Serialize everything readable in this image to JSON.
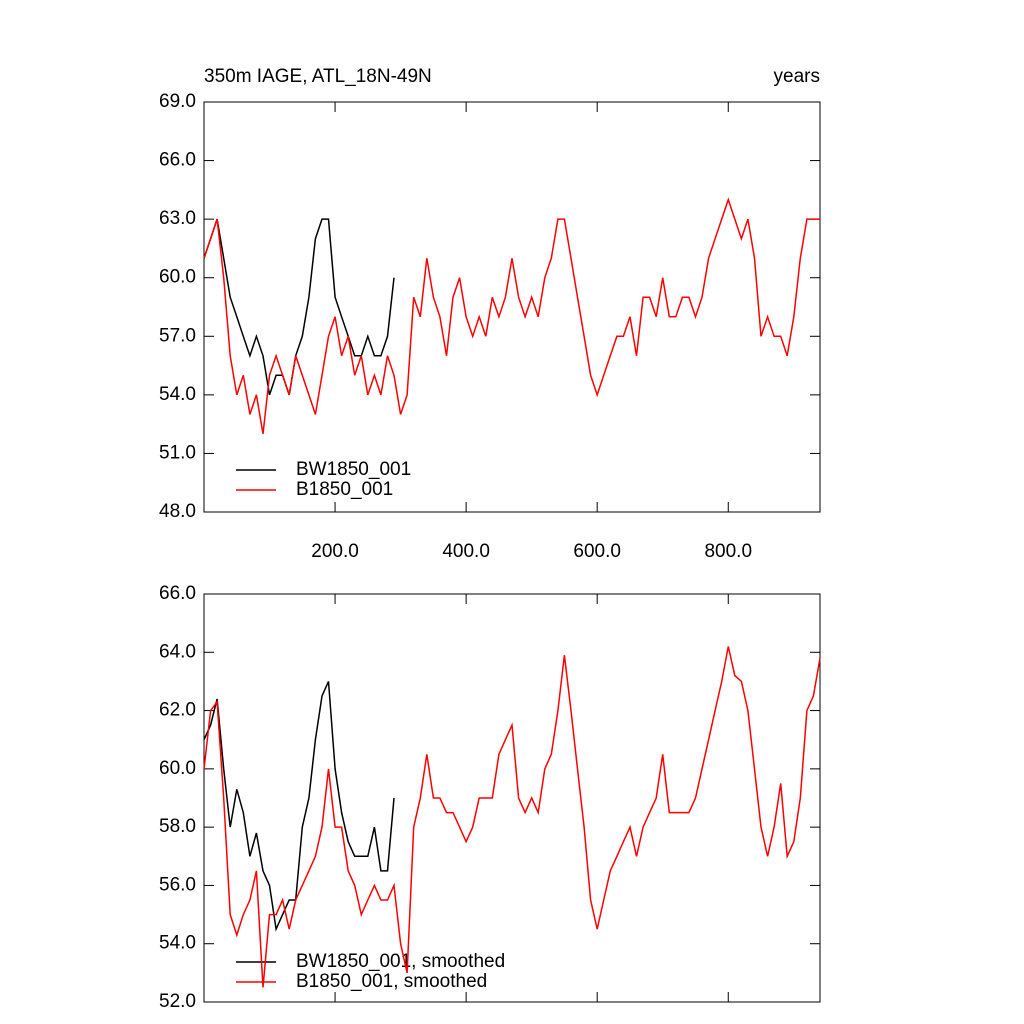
{
  "chart_data": [
    {
      "type": "line",
      "title": "350m IAGE, ATL_18N-49N",
      "right_title": "years",
      "xlim": [
        0,
        940
      ],
      "xticks": [
        {
          "value": 200,
          "label": "200.0"
        },
        {
          "value": 400,
          "label": "400.0"
        },
        {
          "value": 600,
          "label": "600.0"
        },
        {
          "value": 800,
          "label": "800.0"
        }
      ],
      "ylim": [
        48,
        69
      ],
      "yticks": [
        {
          "value": 48,
          "label": "48.0"
        },
        {
          "value": 51,
          "label": "51.0"
        },
        {
          "value": 54,
          "label": "54.0"
        },
        {
          "value": 57,
          "label": "57.0"
        },
        {
          "value": 60,
          "label": "60.0"
        },
        {
          "value": 63,
          "label": "63.0"
        },
        {
          "value": 66,
          "label": "66.0"
        },
        {
          "value": 69,
          "label": "69.0"
        }
      ],
      "legend": "lower left",
      "series": [
        {
          "name": "BW1850_001",
          "color": "#000000",
          "x": [
            0,
            10,
            20,
            30,
            40,
            50,
            60,
            70,
            80,
            90,
            100,
            110,
            120,
            130,
            140,
            150,
            160,
            170,
            180,
            190,
            200,
            210,
            220,
            230,
            240,
            250,
            260,
            270,
            280,
            290
          ],
          "values": [
            61,
            62,
            63,
            61,
            59,
            58,
            57,
            56,
            57,
            56,
            54,
            55,
            55,
            54,
            56,
            57,
            59,
            62,
            63,
            63,
            59,
            58,
            57,
            56,
            56,
            57,
            56,
            56,
            57,
            60
          ]
        },
        {
          "name": "B1850_001",
          "color": "#ff0000",
          "x": [
            0,
            10,
            20,
            30,
            40,
            50,
            60,
            70,
            80,
            90,
            100,
            110,
            120,
            130,
            140,
            150,
            160,
            170,
            180,
            190,
            200,
            210,
            220,
            230,
            240,
            250,
            260,
            270,
            280,
            290,
            300,
            310,
            320,
            330,
            340,
            350,
            360,
            370,
            380,
            390,
            400,
            410,
            420,
            430,
            440,
            450,
            460,
            470,
            480,
            490,
            500,
            510,
            520,
            530,
            540,
            550,
            560,
            570,
            580,
            590,
            600,
            610,
            620,
            630,
            640,
            650,
            660,
            670,
            680,
            690,
            700,
            710,
            720,
            730,
            740,
            750,
            760,
            770,
            780,
            790,
            800,
            810,
            820,
            830,
            840,
            850,
            860,
            870,
            880,
            890,
            900,
            910,
            920,
            930,
            940
          ],
          "values": [
            61,
            62,
            63,
            60,
            56,
            54,
            55,
            53,
            54,
            52,
            55,
            56,
            55,
            54,
            56,
            55,
            54,
            53,
            55,
            57,
            58,
            56,
            57,
            55,
            56,
            54,
            55,
            54,
            56,
            55,
            53,
            54,
            59,
            58,
            61,
            59,
            58,
            56,
            59,
            60,
            58,
            57,
            58,
            57,
            59,
            58,
            59,
            61,
            59,
            58,
            59,
            58,
            60,
            61,
            63,
            63,
            61,
            59,
            57,
            55,
            54,
            55,
            56,
            57,
            57,
            58,
            56,
            59,
            59,
            58,
            60,
            58,
            58,
            59,
            59,
            58,
            59,
            61,
            62,
            63,
            64,
            63,
            62,
            63,
            61,
            57,
            58,
            57,
            57,
            56,
            58,
            61,
            63,
            63,
            63
          ]
        }
      ]
    },
    {
      "type": "line",
      "xlim": [
        0,
        940
      ],
      "xticks": [
        200,
        400,
        600,
        800
      ],
      "ylim": [
        52,
        66
      ],
      "yticks": [
        {
          "value": 52,
          "label": "52.0"
        },
        {
          "value": 54,
          "label": "54.0"
        },
        {
          "value": 56,
          "label": "56.0"
        },
        {
          "value": 58,
          "label": "58.0"
        },
        {
          "value": 60,
          "label": "60.0"
        },
        {
          "value": 62,
          "label": "62.0"
        },
        {
          "value": 64,
          "label": "64.0"
        },
        {
          "value": 66,
          "label": "66.0"
        }
      ],
      "legend": "lower left",
      "series": [
        {
          "name": "BW1850_001, smoothed",
          "color": "#000000",
          "x": [
            0,
            10,
            20,
            30,
            40,
            50,
            60,
            70,
            80,
            90,
            100,
            110,
            120,
            130,
            140,
            150,
            160,
            170,
            180,
            190,
            200,
            210,
            220,
            230,
            240,
            250,
            260,
            270,
            280,
            290
          ],
          "values": [
            61,
            61.5,
            62.4,
            60,
            58,
            59.3,
            58.5,
            57,
            57.8,
            56.5,
            56,
            54.5,
            55,
            55.5,
            55.5,
            58,
            59,
            61,
            62.5,
            63,
            60,
            58.5,
            57.5,
            57,
            57,
            57,
            58,
            56.5,
            56.5,
            59
          ]
        },
        {
          "name": "B1850_001, smoothed",
          "color": "#ff0000",
          "x": [
            0,
            10,
            20,
            30,
            40,
            50,
            60,
            70,
            80,
            90,
            100,
            110,
            120,
            130,
            140,
            150,
            160,
            170,
            180,
            190,
            200,
            210,
            220,
            230,
            240,
            250,
            260,
            270,
            280,
            290,
            300,
            310,
            320,
            330,
            340,
            350,
            360,
            370,
            380,
            390,
            400,
            410,
            420,
            430,
            440,
            450,
            460,
            470,
            480,
            490,
            500,
            510,
            520,
            530,
            540,
            550,
            560,
            570,
            580,
            590,
            600,
            610,
            620,
            630,
            640,
            650,
            660,
            670,
            680,
            690,
            700,
            710,
            720,
            730,
            740,
            750,
            760,
            770,
            780,
            790,
            800,
            810,
            820,
            830,
            840,
            850,
            860,
            870,
            880,
            890,
            900,
            910,
            920,
            930,
            940
          ],
          "values": [
            60,
            62,
            62.3,
            59,
            55,
            54.3,
            55,
            55.5,
            56.5,
            52.5,
            55,
            55,
            55.5,
            54.5,
            55.5,
            56,
            56.5,
            57,
            58,
            60,
            58,
            58,
            56.5,
            56,
            55,
            55.5,
            56,
            55.5,
            55.5,
            56,
            54,
            53,
            58,
            59,
            60.5,
            59,
            59,
            58.5,
            58.5,
            58,
            57.5,
            58,
            59,
            59,
            59,
            60.5,
            61,
            61.5,
            59,
            58.5,
            59,
            58.5,
            60,
            60.5,
            62,
            63.9,
            62,
            60,
            58,
            55.5,
            54.5,
            55.5,
            56.5,
            57,
            57.5,
            58,
            57,
            58,
            58.5,
            59,
            60.5,
            58.5,
            58.5,
            58.5,
            58.5,
            59,
            60,
            61,
            62,
            63,
            64.2,
            63.2,
            63,
            62,
            60,
            58,
            57,
            58,
            59.5,
            57,
            57.5,
            59,
            62,
            62.5,
            63.8
          ]
        }
      ]
    }
  ]
}
